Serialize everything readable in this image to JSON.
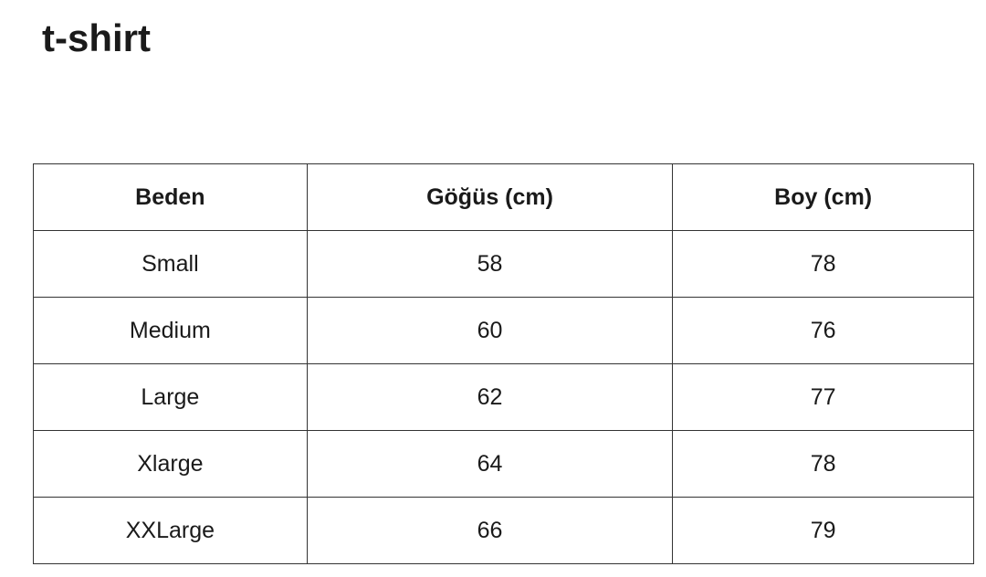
{
  "title": "t-shirt",
  "headers": [
    "Beden",
    "Göğüs (cm)",
    "Boy (cm)"
  ],
  "rows": [
    [
      "Small",
      "58",
      "78"
    ],
    [
      "Medium",
      "60",
      "76"
    ],
    [
      "Large",
      "62",
      "77"
    ],
    [
      "Xlarge",
      "64",
      "78"
    ],
    [
      "XXLarge",
      "66",
      "79"
    ]
  ]
}
